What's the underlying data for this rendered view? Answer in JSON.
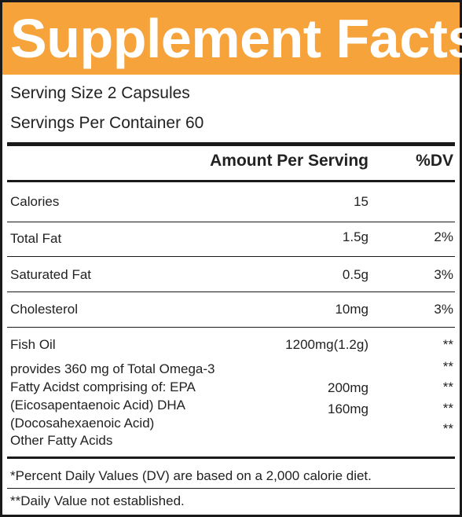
{
  "title": "Supplement Facts",
  "serving_size": "Serving Size 2 Capsules",
  "servings_per_container": "Servings Per Container 60",
  "columns": {
    "amount": "Amount Per Serving",
    "dv": "%DV"
  },
  "rows": [
    {
      "name": "Calories",
      "amount": "15",
      "dv": ""
    },
    {
      "name": "Total Fat",
      "amount": "1.5g",
      "dv": "2%"
    },
    {
      "name": "Saturated Fat",
      "amount": "0.5g",
      "dv": "3%"
    },
    {
      "name": "Cholesterol",
      "amount": "10mg",
      "dv": "3%"
    }
  ],
  "fish_oil": {
    "name": "Fish Oil",
    "amount": "1200mg(1.2g)",
    "dv": "**",
    "lines": [
      "provides 360 mg of Total Omega-3",
      "Fatty Acidst comprising of: EPA",
      "(Eicosapentaenoic Acid) DHA",
      "(Docosahexaenoic Acid)",
      "Other Fatty Acids"
    ],
    "amounts": [
      "200mg",
      "160mg"
    ],
    "dvs": [
      "**",
      "**",
      "**",
      "**"
    ]
  },
  "footnotes": [
    "*Percent Daily Values (DV) are based on a 2,000 calorie diet.",
    "**Daily Value not established."
  ],
  "colors": {
    "header": "#f5a33a",
    "title_text": "#ffffff",
    "border": "#1a1a1a"
  }
}
